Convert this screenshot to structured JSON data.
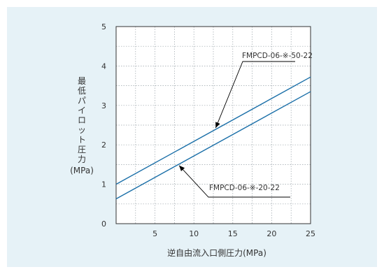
{
  "colors": {
    "panel_background": "#e6f2f7",
    "plot_background": "#ffffff",
    "series_line": "#1a6fa8",
    "grid": "#9aa4aa",
    "axis": "#333333"
  },
  "chart_data": {
    "type": "line",
    "xlabel": "逆自由流入口側圧力(MPa)",
    "ylabel_chars": [
      "最",
      "低",
      "パ",
      "イ",
      "ロ",
      "ッ",
      "ト",
      "圧",
      "力"
    ],
    "ylabel_unit": "(MPa)",
    "xlim": [
      0,
      25
    ],
    "ylim": [
      0,
      5
    ],
    "x_ticks": [
      5,
      10,
      15,
      20,
      25
    ],
    "y_ticks": [
      0,
      1,
      2,
      3,
      4,
      5
    ],
    "origin_label": "0",
    "grid": true,
    "series": [
      {
        "name": "FMPCD-06-※-50-22",
        "x": [
          0,
          25
        ],
        "y": [
          1.0,
          3.72
        ]
      },
      {
        "name": "FMPCD-06-※-20-22",
        "x": [
          0,
          25
        ],
        "y": [
          0.63,
          3.35
        ]
      }
    ]
  }
}
